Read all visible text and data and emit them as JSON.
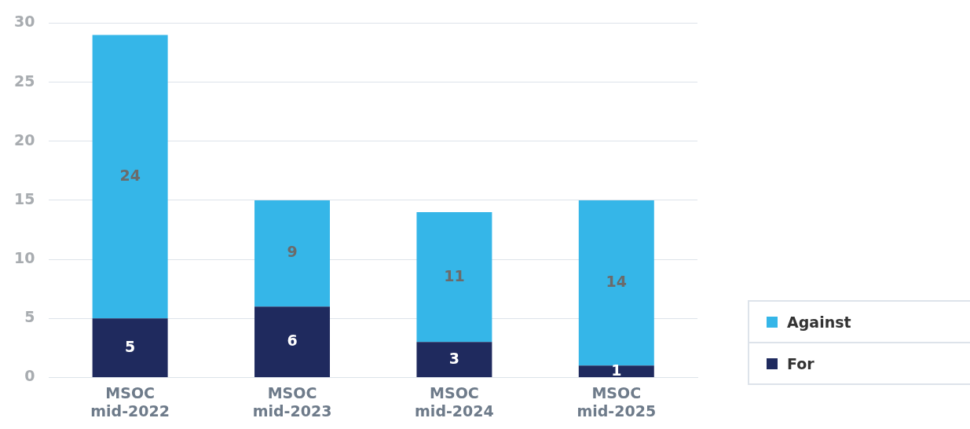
{
  "chart_data": {
    "type": "bar",
    "stacked": true,
    "categories": [
      "MSOC mid-2022",
      "MSOC mid-2023",
      "MSOC mid-2024",
      "MSOC mid-2025"
    ],
    "series": [
      {
        "name": "For",
        "color": "#1f2a5e",
        "values": [
          5,
          6,
          3,
          1
        ]
      },
      {
        "name": "Against",
        "color": "#35b6e8",
        "values": [
          24,
          9,
          11,
          14
        ]
      }
    ],
    "ylim": [
      0,
      30
    ],
    "yticks": [
      0,
      5,
      10,
      15,
      20,
      25,
      30
    ],
    "grid": "y",
    "legend": "right",
    "data_labels": true
  }
}
